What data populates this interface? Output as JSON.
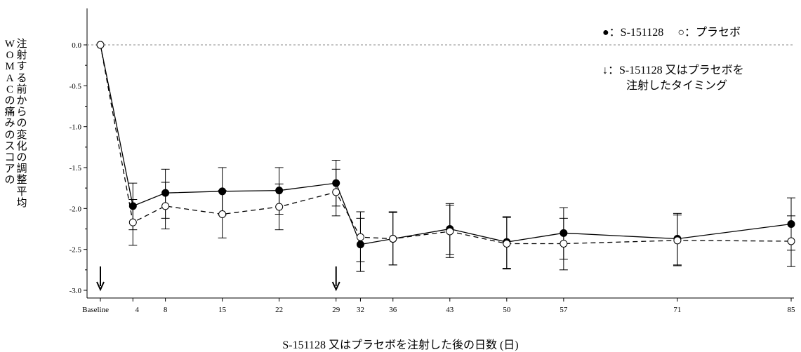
{
  "chart_data": {
    "type": "line",
    "categories": [
      "Baseline",
      "4",
      "8",
      "15",
      "22",
      "29",
      "32",
      "36",
      "43",
      "50",
      "57",
      "71",
      "85"
    ],
    "x_days": [
      0,
      4,
      8,
      15,
      22,
      29,
      32,
      36,
      43,
      50,
      57,
      71,
      85
    ],
    "ylim": [
      -3.0,
      0.0
    ],
    "yticks": [
      "0.0",
      "-0.5",
      "-1.0",
      "-1.5",
      "-2.0",
      "-2.5",
      "-3.0"
    ],
    "ytick_values": [
      0.0,
      -0.5,
      -1.0,
      -1.5,
      -2.0,
      -2.5,
      -3.0
    ],
    "xlabel": "S-151128 又はプラセボを注射した後の日数 (日)",
    "ylabel_part1": "WOMACの痛みのスコアの",
    "ylabel_part2": "注射する前からの変化の調整平均",
    "reference_line": 0.0,
    "series": [
      {
        "name": "S-151128",
        "marker": "filled-circle",
        "line": "solid",
        "values": [
          0.0,
          -1.97,
          -1.81,
          -1.79,
          -1.78,
          -1.69,
          -2.44,
          -2.37,
          -2.25,
          -2.41,
          -2.3,
          -2.37,
          -2.19
        ],
        "err_low": [
          0.0,
          -2.26,
          -2.12,
          -2.08,
          -2.07,
          -1.97,
          -2.77,
          -2.69,
          -2.56,
          -2.73,
          -2.62,
          -2.69,
          -2.51
        ],
        "err_high": [
          0.0,
          -1.69,
          -1.52,
          -1.5,
          -1.5,
          -1.41,
          -2.12,
          -2.04,
          -1.94,
          -2.1,
          -1.99,
          -2.06,
          -1.87
        ]
      },
      {
        "name": "プラセボ",
        "marker": "open-circle",
        "line": "dashed",
        "values": [
          0.0,
          -2.17,
          -1.97,
          -2.07,
          -1.98,
          -1.8,
          -2.35,
          -2.37,
          -2.28,
          -2.43,
          -2.43,
          -2.39,
          -2.4
        ],
        "err_low": [
          0.0,
          -2.45,
          -2.25,
          -2.36,
          -2.26,
          -2.09,
          -2.65,
          -2.69,
          -2.6,
          -2.74,
          -2.75,
          -2.7,
          -2.71
        ],
        "err_high": [
          0.0,
          -1.89,
          -1.68,
          -1.78,
          -1.7,
          -1.52,
          -2.04,
          -2.05,
          -1.96,
          -2.11,
          -2.12,
          -2.08,
          -2.09
        ]
      }
    ],
    "injection_days": [
      0,
      29
    ],
    "legend": {
      "s_marker": "●",
      "s_label": "：S-151128",
      "p_marker": "○",
      "p_label": "：プラセボ",
      "arrow": "↓",
      "arrow_line1": "：S-151128  又はプラセボを",
      "arrow_line2": "注射したタイミング"
    }
  }
}
